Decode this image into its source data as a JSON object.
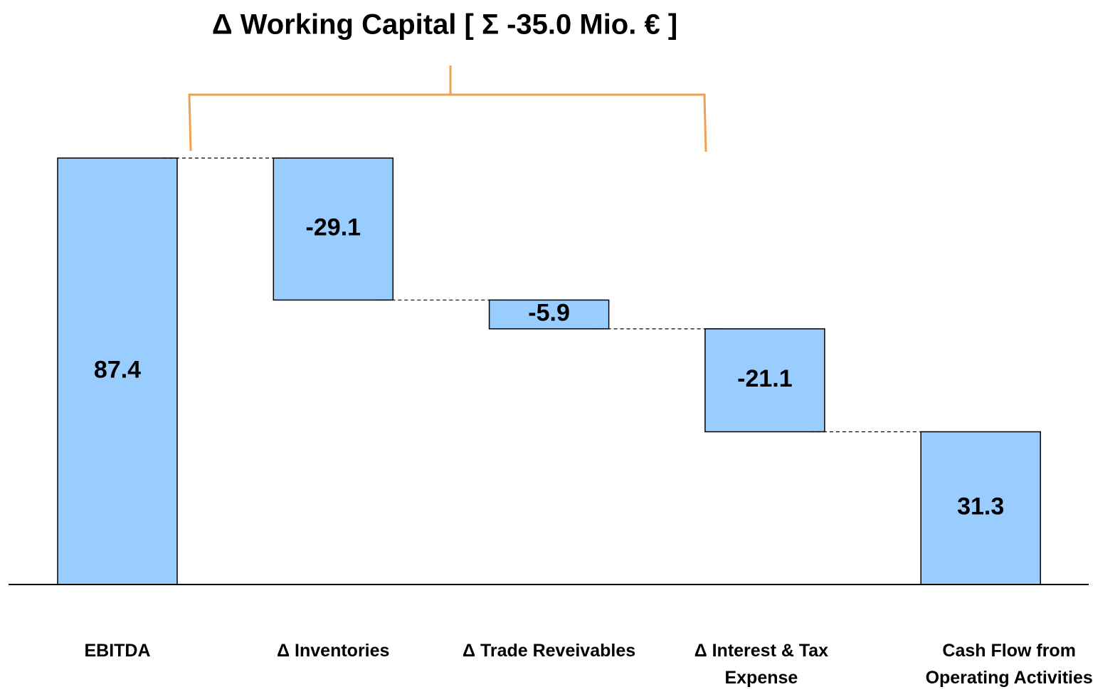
{
  "chart_data": {
    "type": "waterfall",
    "title": "Δ Working Capital [ Σ -35.0 Mio. € ]",
    "categories": [
      "EBITDA",
      "Δ Inventories",
      "Δ Trade Reveivables",
      "Δ Interest & Tax Expense",
      "Cash Flow from Operating Activities"
    ],
    "values": [
      87.4,
      -29.1,
      -5.9,
      -21.1,
      31.3
    ],
    "totals": [
      true,
      false,
      false,
      false,
      true
    ],
    "color": "#99ccff",
    "bracket_color": "#f0a050"
  }
}
